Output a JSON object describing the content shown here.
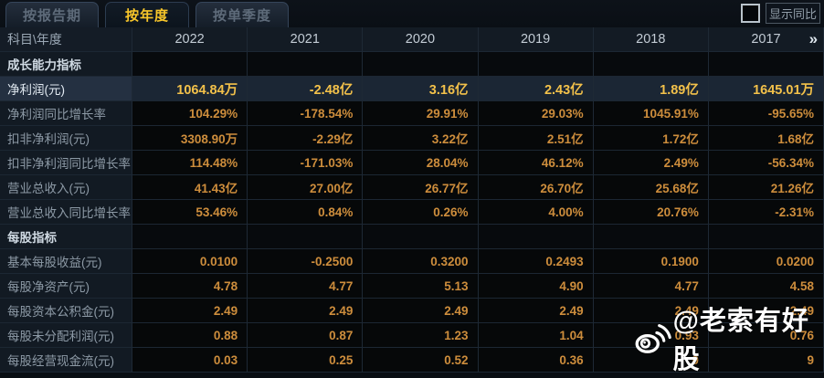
{
  "tabs": [
    {
      "label": "按报告期",
      "active": false
    },
    {
      "label": "按年度",
      "active": true
    },
    {
      "label": "按单季度",
      "active": false
    }
  ],
  "controls": {
    "show_yoy_label": "显示同比",
    "checkbox_checked": false
  },
  "table": {
    "corner_header": "科目\\年度",
    "year_columns": [
      "2022",
      "2021",
      "2020",
      "2019",
      "2018",
      "2017"
    ],
    "more_columns_icon": "»",
    "rows": [
      {
        "type": "section",
        "label": "成长能力指标",
        "values": [
          "",
          "",
          "",
          "",
          "",
          ""
        ]
      },
      {
        "type": "highlight",
        "label": "净利润(元)",
        "values": [
          "1064.84万",
          "-2.48亿",
          "3.16亿",
          "2.43亿",
          "1.89亿",
          "1645.01万"
        ]
      },
      {
        "type": "normal",
        "label": "净利润同比增长率",
        "values": [
          "104.29%",
          "-178.54%",
          "29.91%",
          "29.03%",
          "1045.91%",
          "-95.65%"
        ]
      },
      {
        "type": "normal",
        "label": "扣非净利润(元)",
        "values": [
          "3308.90万",
          "-2.29亿",
          "3.22亿",
          "2.51亿",
          "1.72亿",
          "1.68亿"
        ]
      },
      {
        "type": "normal",
        "label": "扣非净利润同比增长率",
        "values": [
          "114.48%",
          "-171.03%",
          "28.04%",
          "46.12%",
          "2.49%",
          "-56.34%"
        ]
      },
      {
        "type": "normal",
        "label": "营业总收入(元)",
        "values": [
          "41.43亿",
          "27.00亿",
          "26.77亿",
          "26.70亿",
          "25.68亿",
          "21.26亿"
        ]
      },
      {
        "type": "normal",
        "label": "营业总收入同比增长率",
        "values": [
          "53.46%",
          "0.84%",
          "0.26%",
          "4.00%",
          "20.76%",
          "-2.31%"
        ]
      },
      {
        "type": "section",
        "label": "每股指标",
        "values": [
          "",
          "",
          "",
          "",
          "",
          ""
        ]
      },
      {
        "type": "normal",
        "label": "基本每股收益(元)",
        "values": [
          "0.0100",
          "-0.2500",
          "0.3200",
          "0.2493",
          "0.1900",
          "0.0200"
        ]
      },
      {
        "type": "normal",
        "label": "每股净资产(元)",
        "values": [
          "4.78",
          "4.77",
          "5.13",
          "4.90",
          "4.77",
          "4.58"
        ]
      },
      {
        "type": "normal",
        "label": "每股资本公积金(元)",
        "values": [
          "2.49",
          "2.49",
          "2.49",
          "2.49",
          "2.49",
          "2.49"
        ]
      },
      {
        "type": "normal",
        "label": "每股未分配利润(元)",
        "values": [
          "0.88",
          "0.87",
          "1.23",
          "1.04",
          "0.93",
          "0.76"
        ]
      },
      {
        "type": "normal",
        "label": "每股经营现金流(元)",
        "values": [
          "0.03",
          "0.25",
          "0.52",
          "0.36",
          "0",
          "9"
        ]
      }
    ]
  },
  "watermark": {
    "icon": "weibo-icon",
    "text": "@老索有好股"
  },
  "colors": {
    "value_orange": "#cd8d3c",
    "highlight_gold": "#f3c14a",
    "active_tab_yellow": "#f8c62a",
    "row_highlight_bg": "#1b2634",
    "label_col_bg": "#121a23",
    "grid_line": "#1e2935"
  }
}
